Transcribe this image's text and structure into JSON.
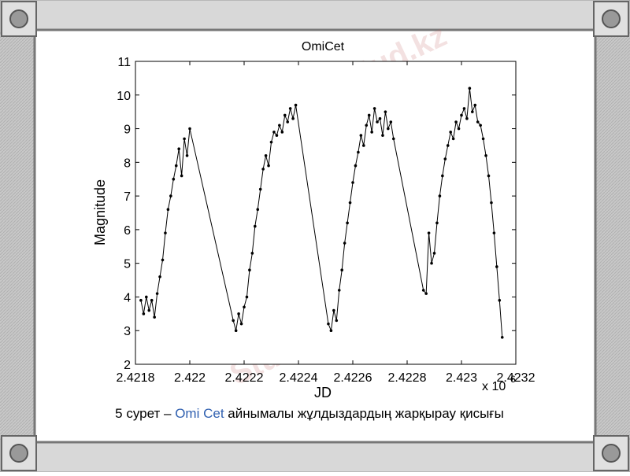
{
  "chart_data": {
    "type": "line",
    "title": "OmiCet",
    "x_label": "JD",
    "y_label": "Magnitude",
    "x_multiplier": "x 10",
    "x_multiplier_exponent": "6",
    "color": "#000000",
    "marker": "dot",
    "grid": false,
    "xlim": [
      2.4218,
      2.4232
    ],
    "xticks": [
      2.4218,
      2.422,
      2.4222,
      2.4224,
      2.4226,
      2.4228,
      2.423,
      2.4232
    ],
    "ylim": [
      2,
      11
    ],
    "yticks": [
      2,
      3,
      4,
      5,
      6,
      7,
      8,
      9,
      10,
      11
    ],
    "x": [
      2.42182,
      2.42183,
      2.42184,
      2.42185,
      2.42186,
      2.42187,
      2.42188,
      2.42189,
      2.4219,
      2.42191,
      2.42192,
      2.42193,
      2.42194,
      2.42195,
      2.42196,
      2.42197,
      2.42198,
      2.42199,
      2.422,
      2.42216,
      2.42217,
      2.42218,
      2.42219,
      2.4222,
      2.42221,
      2.42222,
      2.42223,
      2.42224,
      2.42225,
      2.42226,
      2.42227,
      2.42228,
      2.42229,
      2.4223,
      2.42231,
      2.42232,
      2.42233,
      2.42234,
      2.42235,
      2.42236,
      2.42237,
      2.42238,
      2.42239,
      2.42251,
      2.42252,
      2.42253,
      2.42254,
      2.42255,
      2.42256,
      2.42257,
      2.42258,
      2.42259,
      2.4226,
      2.42261,
      2.42262,
      2.42263,
      2.42264,
      2.42265,
      2.42266,
      2.42267,
      2.42268,
      2.42269,
      2.4227,
      2.42271,
      2.42272,
      2.42273,
      2.42274,
      2.42275,
      2.42286,
      2.42287,
      2.42288,
      2.42289,
      2.4229,
      2.42291,
      2.42292,
      2.42293,
      2.42294,
      2.42295,
      2.42296,
      2.42297,
      2.42298,
      2.42299,
      2.423,
      2.42301,
      2.42302,
      2.42303,
      2.42304,
      2.42305,
      2.42306,
      2.42307,
      2.42308,
      2.42309,
      2.4231,
      2.42311,
      2.42312,
      2.42313,
      2.42314,
      2.42315
    ],
    "values": [
      3.9,
      3.5,
      4.0,
      3.6,
      3.9,
      3.4,
      4.1,
      4.6,
      5.1,
      5.9,
      6.6,
      7.0,
      7.5,
      7.9,
      8.4,
      7.6,
      8.7,
      8.2,
      9.0,
      3.3,
      3.0,
      3.5,
      3.2,
      3.7,
      4.0,
      4.8,
      5.3,
      6.1,
      6.6,
      7.2,
      7.8,
      8.2,
      7.9,
      8.6,
      8.9,
      8.8,
      9.1,
      8.9,
      9.4,
      9.2,
      9.6,
      9.3,
      9.7,
      3.2,
      3.0,
      3.6,
      3.3,
      4.2,
      4.8,
      5.6,
      6.2,
      6.8,
      7.4,
      7.9,
      8.3,
      8.8,
      8.5,
      9.1,
      9.4,
      8.9,
      9.6,
      9.2,
      9.3,
      8.8,
      9.5,
      9.0,
      9.2,
      8.7,
      4.2,
      4.1,
      5.9,
      5.0,
      5.3,
      6.2,
      7.0,
      7.6,
      8.1,
      8.5,
      8.9,
      8.7,
      9.2,
      9.0,
      9.4,
      9.6,
      9.3,
      10.2,
      9.5,
      9.7,
      9.2,
      9.1,
      8.7,
      8.2,
      7.6,
      6.8,
      5.9,
      4.9,
      3.9,
      2.8
    ]
  },
  "caption": {
    "prefix": "5 сурет – ",
    "object": "Omi Cet",
    "text": " айнымалы жұлдыздардың жарқырау қисығы"
  },
  "watermark": "Stud.kz - Stud.kz"
}
